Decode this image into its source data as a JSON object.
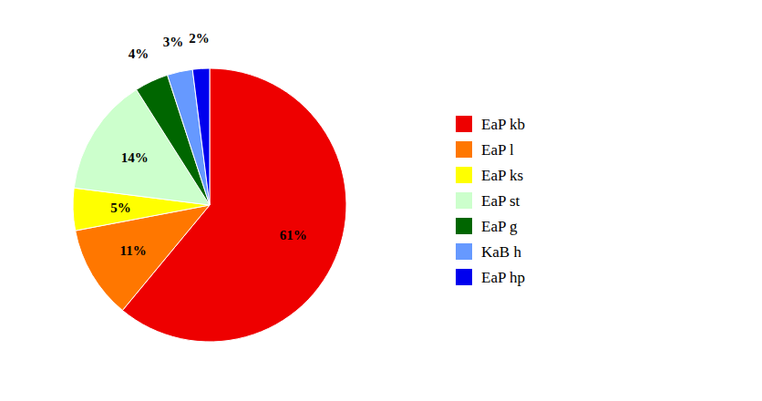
{
  "chart_data": {
    "type": "pie",
    "categories": [
      "EaP kb",
      "EaP l",
      "EaP ks",
      "EaP st",
      "EaP g",
      "KaB h",
      "EaP hp"
    ],
    "values": [
      61,
      11,
      5,
      14,
      4,
      3,
      2
    ],
    "value_labels": [
      "61%",
      "11%",
      "5%",
      "14%",
      "4%",
      "3%",
      "2%"
    ],
    "colors": [
      "#ee0000",
      "#ff7700",
      "#ffff00",
      "#ccffcc",
      "#006600",
      "#6699ff",
      "#0000ee"
    ],
    "data_labels": true,
    "legend": "right"
  }
}
